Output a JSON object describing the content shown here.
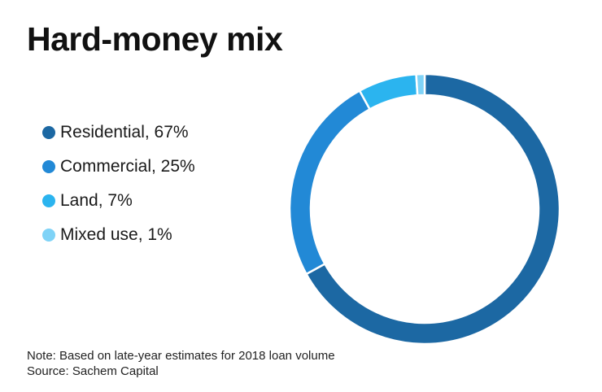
{
  "chart_data": {
    "type": "pie",
    "donut": true,
    "title": "Hard-money mix",
    "slices": [
      {
        "label": "Residential",
        "value": 67,
        "color": "#1c68a3"
      },
      {
        "label": "Commercial",
        "value": 25,
        "color": "#2289d6"
      },
      {
        "label": "Land",
        "value": 7,
        "color": "#2bb4ef"
      },
      {
        "label": "Mixed use",
        "value": 1,
        "color": "#7fd3f7"
      }
    ],
    "legend": {
      "placement": "left",
      "entries": [
        "Residential, 67%",
        "Commercial, 25%",
        "Land, 7%",
        "Mixed use, 1%"
      ]
    },
    "note": "Note: Based on late-year estimates for 2018 loan volume",
    "source": "Source: Sachem Capital"
  }
}
